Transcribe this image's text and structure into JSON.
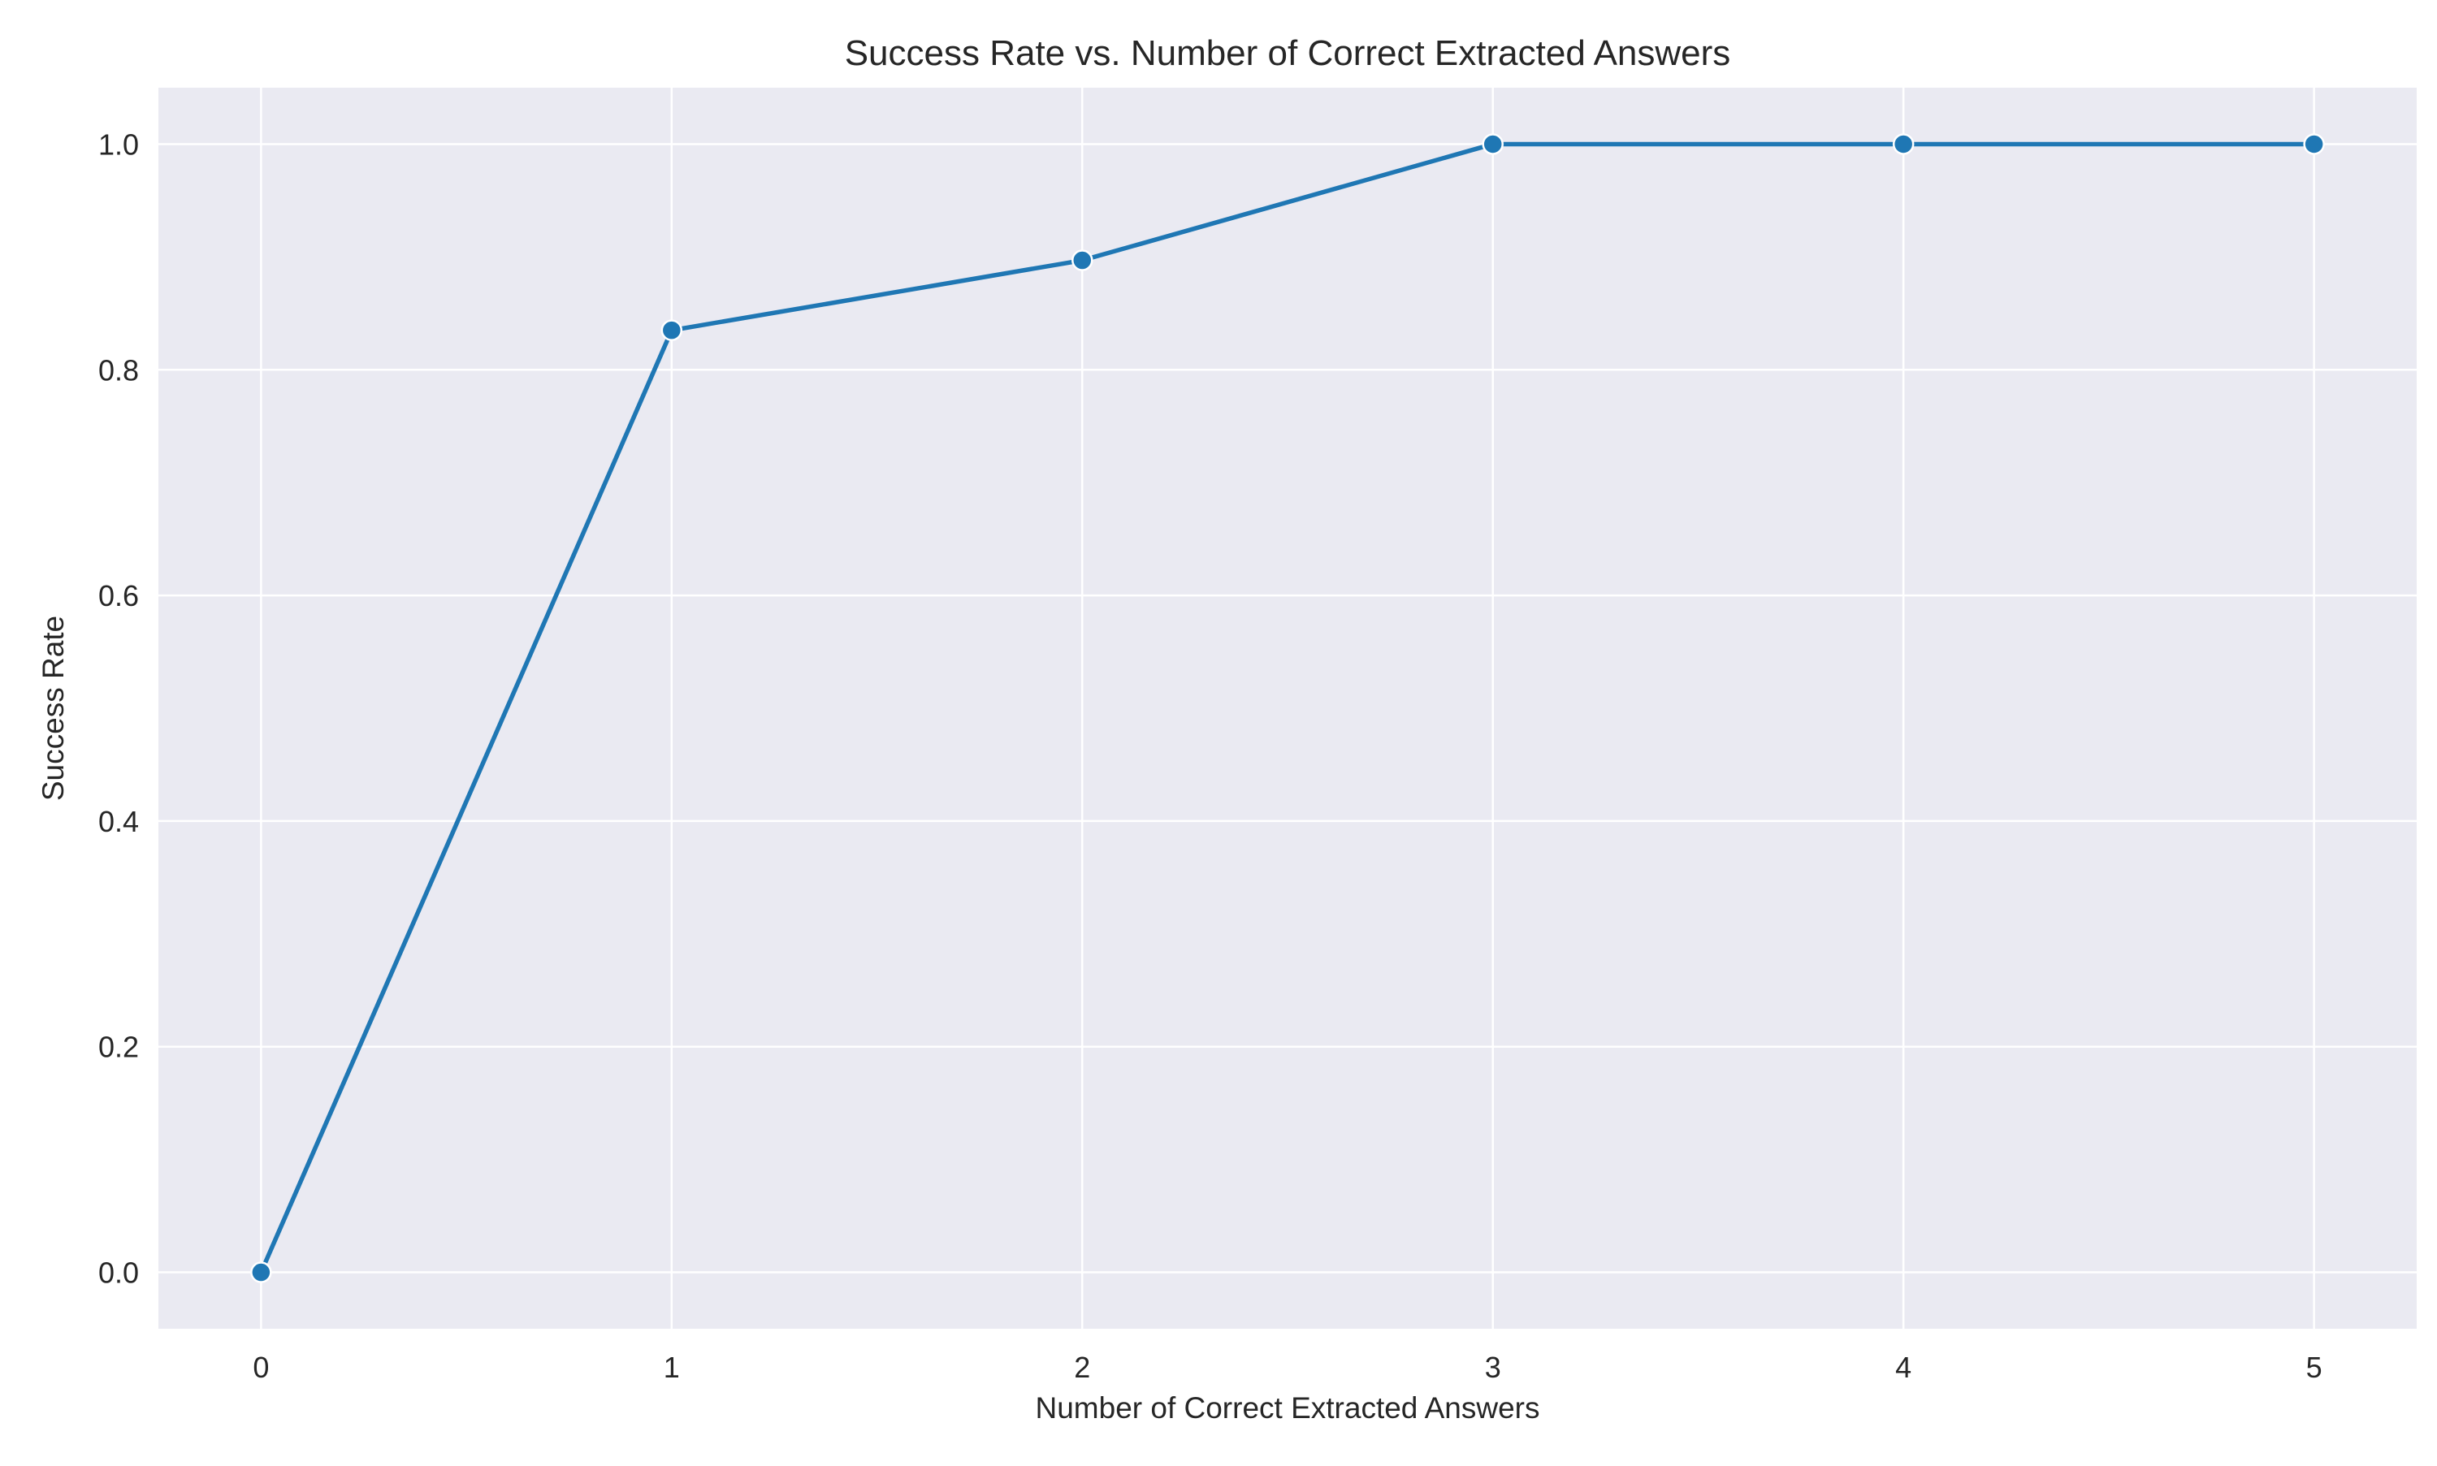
{
  "chart_data": {
    "type": "line",
    "title": "Success Rate vs. Number of Correct Extracted Answers",
    "xlabel": "Number of Correct Extracted Answers",
    "ylabel": "Success Rate",
    "x": [
      0,
      1,
      2,
      3,
      4,
      5
    ],
    "series": [
      {
        "values": [
          0.0,
          0.835,
          0.897,
          1.0,
          1.0,
          1.0
        ]
      }
    ],
    "xlim": [
      -0.25,
      5.25
    ],
    "ylim": [
      -0.05,
      1.05
    ],
    "xticks": [
      0,
      1,
      2,
      3,
      4,
      5
    ],
    "xtick_labels": [
      "0",
      "1",
      "2",
      "3",
      "4",
      "5"
    ],
    "yticks": [
      0.0,
      0.2,
      0.4,
      0.6,
      0.8,
      1.0
    ],
    "ytick_labels": [
      "0.0",
      "0.2",
      "0.4",
      "0.6",
      "0.8",
      "1.0"
    ],
    "grid": true,
    "legend": "none",
    "markers": true,
    "colors": {
      "line": "#1f77b4",
      "plot_background": "#eaeaf2",
      "grid": "#ffffff",
      "marker_edge": "#ffffff",
      "text": "#262626"
    }
  }
}
